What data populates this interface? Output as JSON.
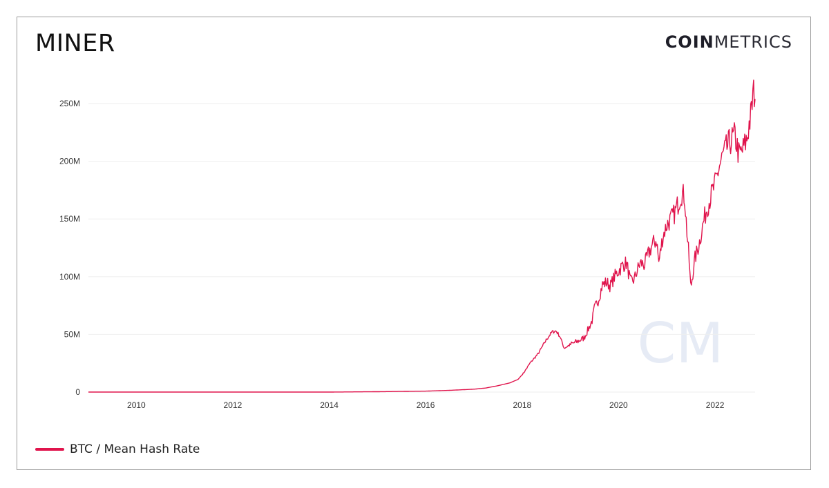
{
  "header": {
    "title": "MINER",
    "brand_bold": "COIN",
    "brand_light": "METRICS"
  },
  "watermark": {
    "text": "CM"
  },
  "colors": {
    "series": "#e0144c",
    "grid": "#eeeeee",
    "watermark": "#e6ebf5"
  },
  "chart_data": {
    "type": "line",
    "title": "",
    "xlabel": "",
    "ylabel": "",
    "xlim": [
      "2009-01-03",
      "2022-10-31"
    ],
    "ylim": [
      0,
      265000000
    ],
    "grid": true,
    "legend_position": "bottom-left",
    "x_ticks": [
      "2010",
      "2012",
      "2014",
      "2016",
      "2018",
      "2020",
      "2022"
    ],
    "y_ticks": [
      {
        "value": 0,
        "label": "0"
      },
      {
        "value": 50000000,
        "label": "50M"
      },
      {
        "value": 100000000,
        "label": "100M"
      },
      {
        "value": 150000000,
        "label": "150M"
      },
      {
        "value": 200000000,
        "label": "200M"
      },
      {
        "value": 250000000,
        "label": "250M"
      }
    ],
    "series": [
      {
        "name": "BTC / Mean Hash Rate",
        "x": [
          "2009-01-03",
          "2010-01-01",
          "2012-01-01",
          "2014-01-01",
          "2015-01-01",
          "2016-01-01",
          "2016-07-01",
          "2017-01-01",
          "2017-04-01",
          "2017-07-01",
          "2017-10-01",
          "2017-12-01",
          "2018-01-15",
          "2018-03-01",
          "2018-05-01",
          "2018-07-01",
          "2018-08-15",
          "2018-09-15",
          "2018-10-15",
          "2018-11-15",
          "2018-12-15",
          "2019-01-15",
          "2019-03-01",
          "2019-04-15",
          "2019-05-15",
          "2019-06-15",
          "2019-07-01",
          "2019-08-01",
          "2019-09-01",
          "2019-10-01",
          "2019-11-01",
          "2019-12-01",
          "2020-01-01",
          "2020-02-01",
          "2020-03-01",
          "2020-04-01",
          "2020-05-01",
          "2020-05-20",
          "2020-06-15",
          "2020-07-15",
          "2020-08-15",
          "2020-09-15",
          "2020-10-15",
          "2020-11-01",
          "2020-12-01",
          "2021-01-01",
          "2021-02-01",
          "2021-03-01",
          "2021-04-01",
          "2021-04-20",
          "2021-05-15",
          "2021-06-01",
          "2021-06-15",
          "2021-07-01",
          "2021-07-15",
          "2021-08-01",
          "2021-09-01",
          "2021-10-01",
          "2021-11-01",
          "2021-12-01",
          "2022-01-01",
          "2022-02-01",
          "2022-03-01",
          "2022-04-01",
          "2022-05-01",
          "2022-06-01",
          "2022-07-01",
          "2022-08-01",
          "2022-09-01",
          "2022-09-15",
          "2022-10-01",
          "2022-10-15",
          "2022-10-31"
        ],
        "values": [
          0,
          0,
          0,
          0,
          300000,
          800000,
          1500000,
          2500000,
          3500000,
          5500000,
          8000000,
          11000000,
          17000000,
          25000000,
          33000000,
          45000000,
          52000000,
          53000000,
          48000000,
          38000000,
          40000000,
          42000000,
          44000000,
          47000000,
          54000000,
          62000000,
          72000000,
          80000000,
          93000000,
          95000000,
          92000000,
          100000000,
          105000000,
          110000000,
          112000000,
          95000000,
          98000000,
          105000000,
          112000000,
          110000000,
          120000000,
          128000000,
          132000000,
          112000000,
          135000000,
          145000000,
          150000000,
          155000000,
          165000000,
          172000000,
          170000000,
          140000000,
          120000000,
          90000000,
          102000000,
          115000000,
          128000000,
          145000000,
          160000000,
          170000000,
          180000000,
          195000000,
          205000000,
          212000000,
          218000000,
          222000000,
          205000000,
          210000000,
          220000000,
          232000000,
          240000000,
          258000000,
          260000000
        ]
      }
    ]
  }
}
